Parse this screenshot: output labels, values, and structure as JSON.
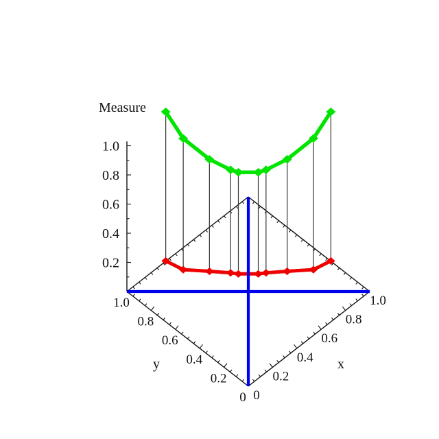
{
  "figure": {
    "background": "#ffffff",
    "kind": "3D measure plot over the unit square"
  },
  "chart_data": {
    "type": "scatter",
    "projection": "3d-diamond-base",
    "title": "",
    "zaxis": {
      "label": "Measure",
      "tick_labels": [
        "0.2",
        "0.4",
        "0.6",
        "0.8",
        "1.0"
      ],
      "tick_values": [
        0.2,
        0.4,
        0.6,
        0.8,
        1.0
      ],
      "minor_step": 0.1,
      "range": [
        0,
        1.05
      ]
    },
    "xaxis": {
      "label": "x",
      "tick_labels": [
        "0",
        "0.2",
        "0.4",
        "0.6",
        "0.8",
        "1.0"
      ],
      "tick_values": [
        0,
        0.2,
        0.4,
        0.6,
        0.8,
        1.0
      ],
      "minor_step": 0.05,
      "range": [
        0,
        1
      ]
    },
    "yaxis": {
      "label": "y",
      "tick_labels": [
        "0",
        "0.2",
        "0.4",
        "0.6",
        "0.8",
        "1.0"
      ],
      "tick_values": [
        0,
        0.2,
        0.4,
        0.6,
        0.8,
        1.0
      ],
      "minor_step": 0.05,
      "range": [
        0,
        1
      ]
    },
    "origin_corner_label": "0 0",
    "points_rule": "points lie on the anti-diagonal y = 1 - x",
    "x": [
      0.16,
      0.232,
      0.34,
      0.427,
      0.459,
      0.541,
      0.573,
      0.66,
      0.768,
      0.84
    ],
    "y": [
      0.84,
      0.768,
      0.66,
      0.573,
      0.541,
      0.459,
      0.427,
      0.34,
      0.232,
      0.16
    ],
    "series": [
      {
        "name": "upper-measure-green",
        "color": "#00e400",
        "marker": "diamond",
        "values": [
          1.233,
          1.05,
          0.907,
          0.835,
          0.818,
          0.818,
          0.835,
          0.907,
          1.05,
          1.233
        ]
      },
      {
        "name": "lower-measure-red",
        "color": "#ee0000",
        "marker": "diamond",
        "values": [
          0.21,
          0.15,
          0.139,
          0.128,
          0.121,
          0.121,
          0.128,
          0.139,
          0.15,
          0.21
        ]
      }
    ],
    "base_diagonals": {
      "color": "#0000ee",
      "lines": [
        "main diagonal from (0,0) to (1,1)",
        "anti-diagonal from (0,1) to (1,0)"
      ]
    },
    "drop_lines": {
      "color": "#333333",
      "from": "upper-measure-green",
      "to": "lower-measure-red"
    },
    "edge_color": "#111111",
    "text_color": "#111111"
  }
}
